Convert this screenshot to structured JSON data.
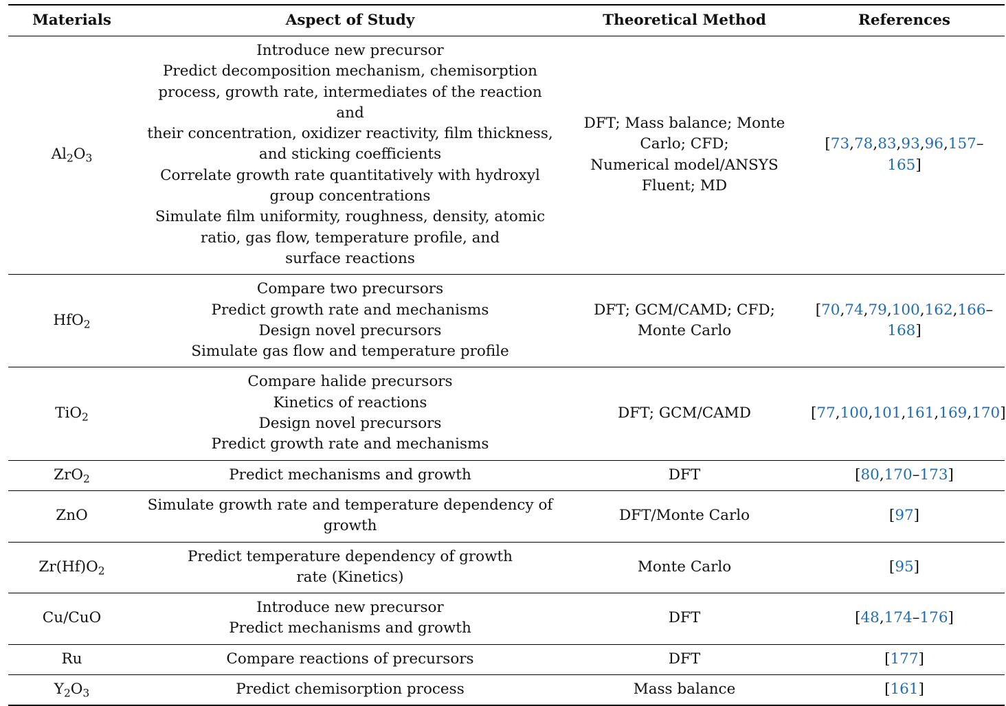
{
  "headers": {
    "materials": "Materials",
    "aspect": "Aspect of Study",
    "method": "Theoretical Method",
    "references": "References"
  },
  "rows": [
    {
      "material": {
        "base": "Al",
        "sub1": "2",
        "mid": "O",
        "sub2": "3"
      },
      "aspect": [
        "Introduce new precursor",
        "Predict decomposition mechanism, chemisorption",
        "process, growth rate, intermediates of the reaction and",
        "their concentration, oxidizer reactivity, film thickness,",
        "and sticking coefficients",
        "Correlate growth rate quantitatively with hydroxyl",
        "group concentrations",
        "Simulate film uniformity, roughness, density, atomic",
        "ratio, gas flow, temperature profile, and",
        "surface reactions"
      ],
      "method": [
        "DFT; Mass balance; Monte",
        "Carlo; CFD;",
        "Numerical model/ANSYS",
        "Fluent; MD"
      ],
      "refs": [
        "73",
        "78",
        "83",
        "93",
        "96",
        "157",
        "165"
      ]
    },
    {
      "material": {
        "base": "HfO",
        "sub1": "2"
      },
      "aspect": [
        "Compare two precursors",
        "Predict growth rate and mechanisms",
        "Design novel precursors",
        "Simulate gas flow and temperature profile"
      ],
      "method": [
        "DFT; GCM/CAMD; CFD;",
        "Monte Carlo"
      ],
      "refs": [
        "70",
        "74",
        "79",
        "100",
        "162",
        "166",
        "168"
      ]
    },
    {
      "material": {
        "base": "TiO",
        "sub1": "2"
      },
      "aspect": [
        "Compare halide precursors",
        "Kinetics of reactions",
        "Design novel precursors",
        "Predict growth rate and mechanisms"
      ],
      "method": [
        "DFT; GCM/CAMD"
      ],
      "refs": [
        "77",
        "100",
        "101",
        "161",
        "169",
        "170"
      ]
    },
    {
      "material": {
        "base": "ZrO",
        "sub1": "2"
      },
      "aspect": [
        "Predict mechanisms and growth"
      ],
      "method": [
        "DFT"
      ],
      "refs": [
        "80",
        "170",
        "173"
      ]
    },
    {
      "material": {
        "base": "ZnO"
      },
      "aspect": [
        "Simulate growth rate and temperature dependency of",
        "growth"
      ],
      "method": [
        "DFT/Monte Carlo"
      ],
      "refs": [
        "97"
      ]
    },
    {
      "material": {
        "base": "Zr(Hf)O",
        "sub1": "2"
      },
      "aspect": [
        "Predict temperature dependency of growth",
        "rate (Kinetics)"
      ],
      "method": [
        "Monte Carlo"
      ],
      "refs": [
        "95"
      ]
    },
    {
      "material": {
        "base": "Cu/CuO"
      },
      "aspect": [
        "Introduce new precursor",
        "Predict mechanisms and growth"
      ],
      "method": [
        "DFT"
      ],
      "refs": [
        "48",
        "174",
        "176"
      ]
    },
    {
      "material": {
        "base": "Ru"
      },
      "aspect": [
        "Compare reactions of precursors"
      ],
      "method": [
        "DFT"
      ],
      "refs": [
        "177"
      ]
    },
    {
      "material": {
        "base": "Y",
        "sub1": "2",
        "mid": "O",
        "sub2": "3"
      },
      "aspect": [
        "Predict chemisorption process"
      ],
      "method": [
        "Mass balance"
      ],
      "refs": [
        "161"
      ]
    }
  ],
  "colors": {
    "link": "#1f6db3",
    "text": "#111111",
    "rule": "#000000"
  }
}
